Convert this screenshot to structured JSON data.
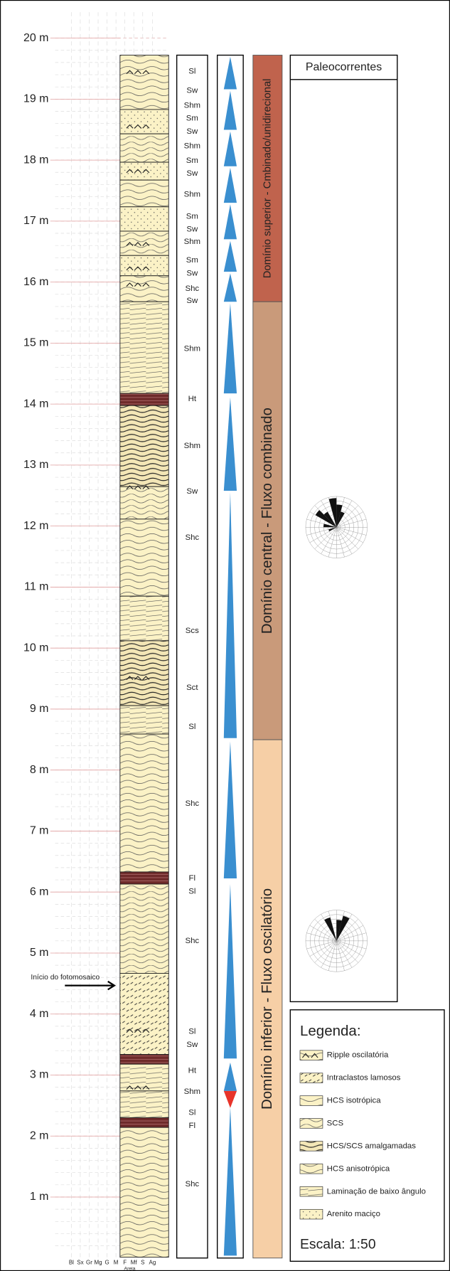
{
  "depth_labels": [
    "1 m",
    "2 m",
    "3 m",
    "4 m",
    "5 m",
    "6 m",
    "7 m",
    "8 m",
    "9 m",
    "10 m",
    "11 m",
    "12 m",
    "13 m",
    "14 m",
    "15 m",
    "16 m",
    "17 m",
    "18 m",
    "19 m",
    "20 m"
  ],
  "grain_size_labels": [
    "Bl",
    "Sx",
    "Gr",
    "Mg",
    "G",
    "M",
    "F",
    "Mf",
    "S",
    "Ag"
  ],
  "grain_size_caption": "Areia",
  "facies": [
    "Sl",
    "Sw",
    "Shm",
    "Sm",
    "Sw",
    "Shm",
    "Sm",
    "Sw",
    "Shm",
    "Sm",
    "Sw",
    "Shm",
    "Sm",
    "Sw",
    "Shc",
    "Sw",
    "Shm",
    "Ht",
    "Shm",
    "Sw",
    "Shc",
    "Scs",
    "Sct",
    "Sl",
    "Shc",
    "Fl",
    "Sl",
    "Shc",
    "Sl",
    "Sw",
    "Ht",
    "Shm",
    "Sl",
    "Fl",
    "Shc"
  ],
  "domains": [
    "Domínio superior - Cmbinado/unidirecional",
    "Domínio central - Fluxo combinado",
    "Domínio inferior - Fluxo oscilatório"
  ],
  "annotation": "Início do fotomosaico",
  "paleocurrents": {
    "title": "Paleocorrentes"
  },
  "legend": {
    "title": "Legenda:",
    "items": [
      "Ripple oscilatória",
      "Intraclastos lamosos",
      "HCS isotrópica",
      "SCS",
      "HCS/SCS amalgamadas",
      "HCS anisotrópica",
      "Laminação de baixo ângulo",
      "Arenito maciço"
    ],
    "scale": "Escala: 1:50"
  }
}
